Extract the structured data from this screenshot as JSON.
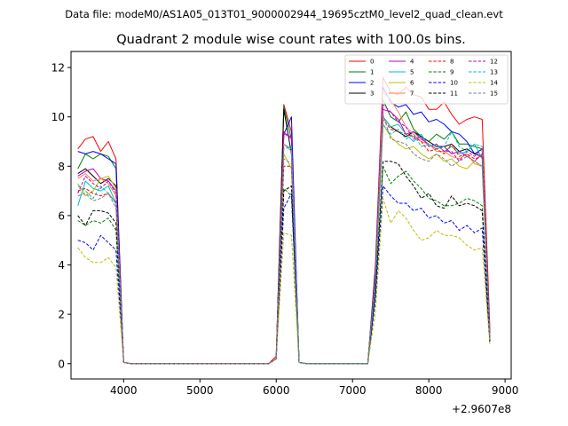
{
  "suptitle": "Data file: modeM0/AS1A05_013T01_9000002944_19695cztM0_level2_quad_clean.evt",
  "chart_data": {
    "type": "line",
    "title": "Quadrant 2 module wise count rates with 100.0s bins.",
    "xlabel": "",
    "ylabel": "",
    "x_offset_label": "+2.9607e8",
    "xlim": [
      3310,
      9080
    ],
    "ylim": [
      -0.62,
      12.65
    ],
    "xticks": [
      4000,
      5000,
      6000,
      7000,
      8000,
      9000
    ],
    "yticks": [
      0,
      2,
      4,
      6,
      8,
      10,
      12
    ],
    "grid": false,
    "legend_position": "upper right",
    "legend_columns": 4,
    "x": [
      3400,
      3500,
      3600,
      3700,
      3800,
      3900,
      4000,
      4100,
      4200,
      4300,
      4400,
      4500,
      4600,
      4700,
      4800,
      4900,
      5000,
      5100,
      5200,
      5300,
      5400,
      5500,
      5600,
      5700,
      5800,
      5900,
      6000,
      6100,
      6200,
      6300,
      6400,
      6500,
      6600,
      6700,
      6800,
      6900,
      7000,
      7100,
      7200,
      7300,
      7400,
      7500,
      7600,
      7700,
      7800,
      7900,
      8000,
      8100,
      8200,
      8300,
      8400,
      8500,
      8600,
      8700,
      8800
    ],
    "series": [
      {
        "name": "0",
        "color": "#ff0000",
        "dash": "solid",
        "values": [
          8.7,
          9.1,
          9.2,
          8.6,
          9.0,
          8.3,
          0.05,
          0,
          0,
          0,
          0,
          0,
          0,
          0,
          0,
          0,
          0,
          0,
          0,
          0,
          0,
          0,
          0,
          0,
          0,
          0,
          0.3,
          10.5,
          9.4,
          0.05,
          0,
          0,
          0,
          0,
          0,
          0,
          0,
          0,
          0,
          4.0,
          11.6,
          11.0,
          10.9,
          11.2,
          10.9,
          10.8,
          10.3,
          10.3,
          10.6,
          10.1,
          9.7,
          9.9,
          10.0,
          9.9,
          1.5
        ]
      },
      {
        "name": "1",
        "color": "#008000",
        "dash": "solid",
        "values": [
          7.9,
          8.5,
          8.3,
          8.5,
          8.4,
          7.9,
          0.05,
          0,
          0,
          0,
          0,
          0,
          0,
          0,
          0,
          0,
          0,
          0,
          0,
          0,
          0,
          0,
          0,
          0,
          0,
          0,
          0.2,
          10.4,
          9.1,
          0.05,
          0,
          0,
          0,
          0,
          0,
          0,
          0,
          0,
          0,
          3.7,
          10.7,
          10.0,
          9.8,
          10.2,
          9.5,
          9.2,
          9.0,
          9.3,
          9.1,
          9.4,
          8.9,
          8.9,
          8.8,
          8.7,
          1.2
        ]
      },
      {
        "name": "2",
        "color": "#0000ff",
        "dash": "solid",
        "values": [
          8.6,
          8.5,
          8.6,
          8.5,
          8.3,
          8.1,
          0.05,
          0,
          0,
          0,
          0,
          0,
          0,
          0,
          0,
          0,
          0,
          0,
          0,
          0,
          0,
          0,
          0,
          0,
          0,
          0,
          0.2,
          9.3,
          10.0,
          0.05,
          0,
          0,
          0,
          0,
          0,
          0,
          0,
          0,
          0,
          3.8,
          11.2,
          10.6,
          10.4,
          10.5,
          10.1,
          10.2,
          9.8,
          9.9,
          9.7,
          9.4,
          9.3,
          9.0,
          8.5,
          8.7,
          1.3
        ]
      },
      {
        "name": "3",
        "color": "#000000",
        "dash": "solid",
        "values": [
          7.7,
          7.9,
          7.6,
          7.3,
          7.5,
          7.2,
          0.05,
          0,
          0,
          0,
          0,
          0,
          0,
          0,
          0,
          0,
          0,
          0,
          0,
          0,
          0,
          0,
          0,
          0,
          0,
          0,
          0.2,
          10.3,
          8.5,
          0.05,
          0,
          0,
          0,
          0,
          0,
          0,
          0,
          0,
          0,
          3.6,
          10.0,
          9.6,
          9.4,
          9.2,
          9.4,
          9.2,
          9.0,
          8.8,
          8.8,
          8.9,
          8.6,
          8.7,
          8.5,
          8.4,
          1.1
        ]
      },
      {
        "name": "4",
        "color": "#bf00bf",
        "dash": "solid",
        "values": [
          7.6,
          7.8,
          7.9,
          7.5,
          7.4,
          7.0,
          0.05,
          0,
          0,
          0,
          0,
          0,
          0,
          0,
          0,
          0,
          0,
          0,
          0,
          0,
          0,
          0,
          0,
          0,
          0,
          0,
          0.2,
          9.3,
          9.2,
          0.05,
          0,
          0,
          0,
          0,
          0,
          0,
          0,
          0,
          0,
          3.5,
          10.3,
          10.2,
          9.9,
          9.3,
          9.4,
          9.1,
          8.9,
          8.7,
          8.8,
          8.5,
          8.6,
          8.4,
          8.2,
          8.5,
          1.1
        ]
      },
      {
        "name": "5",
        "color": "#00bfbf",
        "dash": "solid",
        "values": [
          6.4,
          7.4,
          7.1,
          7.0,
          7.2,
          6.5,
          0.05,
          0,
          0,
          0,
          0,
          0,
          0,
          0,
          0,
          0,
          0,
          0,
          0,
          0,
          0,
          0,
          0,
          0,
          0,
          0,
          0.2,
          8.9,
          8.7,
          0.05,
          0,
          0,
          0,
          0,
          0,
          0,
          0,
          0,
          0,
          3.4,
          10.0,
          9.6,
          9.7,
          9.3,
          9.0,
          9.3,
          8.8,
          8.9,
          8.6,
          8.8,
          8.5,
          8.6,
          8.9,
          8.3,
          1.1
        ]
      },
      {
        "name": "6",
        "color": "#bfbf00",
        "dash": "solid",
        "values": [
          7.3,
          6.8,
          7.0,
          7.5,
          7.6,
          7.1,
          0.05,
          0,
          0,
          0,
          0,
          0,
          0,
          0,
          0,
          0,
          0,
          0,
          0,
          0,
          0,
          0,
          0,
          0,
          0,
          0,
          0.2,
          8.5,
          7.9,
          0.05,
          0,
          0,
          0,
          0,
          0,
          0,
          0,
          0,
          0,
          3.3,
          9.7,
          9.2,
          8.9,
          8.7,
          8.8,
          8.5,
          8.3,
          8.5,
          8.2,
          8.3,
          8.0,
          7.9,
          8.2,
          8.0,
          1.0
        ]
      },
      {
        "name": "7",
        "color": "#ff7f50",
        "dash": "solid",
        "values": [
          7.5,
          7.7,
          7.4,
          7.5,
          7.3,
          6.8,
          0.05,
          0,
          0,
          0,
          0,
          0,
          0,
          0,
          0,
          0,
          0,
          0,
          0,
          0,
          0,
          0,
          0,
          0,
          0,
          0,
          0.2,
          8.9,
          8.6,
          0.05,
          0,
          0,
          0,
          0,
          0,
          0,
          0,
          0,
          0,
          3.5,
          11.0,
          10.7,
          10.2,
          9.6,
          9.3,
          9.0,
          8.9,
          8.6,
          8.6,
          8.4,
          8.3,
          8.5,
          8.1,
          8.0,
          1.1
        ]
      },
      {
        "name": "8",
        "color": "#ff0000",
        "dash": "dashed",
        "values": [
          7.0,
          7.1,
          6.9,
          6.8,
          6.9,
          6.5,
          0.05,
          0,
          0,
          0,
          0,
          0,
          0,
          0,
          0,
          0,
          0,
          0,
          0,
          0,
          0,
          0,
          0,
          0,
          0,
          0,
          0.2,
          8.0,
          8.0,
          0.05,
          0,
          0,
          0,
          0,
          0,
          0,
          0,
          0,
          0,
          3.3,
          9.9,
          9.5,
          9.4,
          9.3,
          9.2,
          9.0,
          8.6,
          8.7,
          8.5,
          8.9,
          8.4,
          8.5,
          8.3,
          8.4,
          1.0
        ]
      },
      {
        "name": "9",
        "color": "#008000",
        "dash": "dashed",
        "values": [
          5.8,
          5.6,
          5.8,
          5.7,
          5.9,
          5.4,
          0.05,
          0,
          0,
          0,
          0,
          0,
          0,
          0,
          0,
          0,
          0,
          0,
          0,
          0,
          0,
          0,
          0,
          0,
          0,
          0,
          0.2,
          7.1,
          6.8,
          0.05,
          0,
          0,
          0,
          0,
          0,
          0,
          0,
          0,
          0,
          2.8,
          8.0,
          7.3,
          7.6,
          7.8,
          7.4,
          7.1,
          6.7,
          6.6,
          6.4,
          6.4,
          6.5,
          6.7,
          6.6,
          6.4,
          0.9
        ]
      },
      {
        "name": "10",
        "color": "#0000ff",
        "dash": "dashed",
        "values": [
          5.0,
          4.9,
          4.6,
          5.2,
          4.9,
          4.6,
          0.05,
          0,
          0,
          0,
          0,
          0,
          0,
          0,
          0,
          0,
          0,
          0,
          0,
          0,
          0,
          0,
          0,
          0,
          0,
          0,
          0.2,
          6.3,
          6.9,
          0.05,
          0,
          0,
          0,
          0,
          0,
          0,
          0,
          0,
          0,
          2.6,
          7.2,
          6.8,
          6.5,
          6.5,
          6.2,
          6.3,
          5.9,
          6.0,
          5.7,
          5.8,
          5.4,
          5.6,
          5.3,
          5.5,
          0.9
        ]
      },
      {
        "name": "11",
        "color": "#000000",
        "dash": "dashed",
        "values": [
          6.0,
          5.6,
          6.2,
          6.2,
          6.1,
          5.7,
          0.05,
          0,
          0,
          0,
          0,
          0,
          0,
          0,
          0,
          0,
          0,
          0,
          0,
          0,
          0,
          0,
          0,
          0,
          0,
          0,
          0.2,
          7.0,
          7.2,
          0.05,
          0,
          0,
          0,
          0,
          0,
          0,
          0,
          0,
          0,
          2.9,
          8.2,
          8.2,
          8.1,
          7.6,
          7.2,
          6.7,
          6.9,
          6.4,
          6.3,
          6.8,
          6.4,
          6.5,
          6.4,
          6.2,
          0.9
        ]
      },
      {
        "name": "12",
        "color": "#bf00bf",
        "dash": "dashed",
        "values": [
          6.9,
          7.6,
          7.3,
          7.1,
          7.4,
          6.9,
          0.05,
          0,
          0,
          0,
          0,
          0,
          0,
          0,
          0,
          0,
          0,
          0,
          0,
          0,
          0,
          0,
          0,
          0,
          0,
          0,
          0.2,
          9.4,
          9.1,
          0.05,
          0,
          0,
          0,
          0,
          0,
          0,
          0,
          0,
          0,
          3.5,
          10.5,
          10.2,
          9.8,
          9.6,
          9.1,
          9.2,
          8.8,
          8.9,
          8.6,
          8.6,
          8.2,
          8.6,
          8.4,
          8.7,
          1.1
        ]
      },
      {
        "name": "13",
        "color": "#00bfbf",
        "dash": "dashed",
        "values": [
          7.2,
          7.0,
          6.7,
          7.2,
          6.9,
          6.5,
          0.05,
          0,
          0,
          0,
          0,
          0,
          0,
          0,
          0,
          0,
          0,
          0,
          0,
          0,
          0,
          0,
          0,
          0,
          0,
          0,
          0.2,
          8.7,
          8.8,
          0.05,
          0,
          0,
          0,
          0,
          0,
          0,
          0,
          0,
          0,
          3.4,
          9.7,
          9.3,
          9.5,
          9.1,
          9.3,
          8.8,
          8.9,
          8.7,
          8.8,
          9.4,
          8.8,
          8.6,
          8.9,
          8.8,
          1.1
        ]
      },
      {
        "name": "14",
        "color": "#bfbf00",
        "dash": "dashed",
        "values": [
          4.7,
          4.3,
          4.1,
          4.1,
          4.3,
          3.9,
          0.05,
          0,
          0,
          0,
          0,
          0,
          0,
          0,
          0,
          0,
          0,
          0,
          0,
          0,
          0,
          0,
          0,
          0,
          0,
          0,
          0.2,
          5.3,
          5.2,
          0.05,
          0,
          0,
          0,
          0,
          0,
          0,
          0,
          0,
          0,
          2.1,
          6.7,
          5.7,
          6.2,
          5.9,
          5.4,
          5.0,
          5.1,
          5.4,
          5.2,
          5.2,
          5.1,
          4.8,
          4.6,
          4.7,
          0.8
        ]
      },
      {
        "name": "15",
        "color": "#808080",
        "dash": "dashed",
        "values": [
          6.8,
          6.9,
          6.6,
          6.7,
          6.9,
          6.3,
          0.05,
          0,
          0,
          0,
          0,
          0,
          0,
          0,
          0,
          0,
          0,
          0,
          0,
          0,
          0,
          0,
          0,
          0,
          0,
          0,
          0.2,
          8.3,
          8.1,
          0.05,
          0,
          0,
          0,
          0,
          0,
          0,
          0,
          0,
          0,
          3.3,
          10.1,
          9.1,
          9.0,
          8.9,
          8.5,
          8.3,
          8.2,
          8.5,
          8.3,
          8.0,
          8.2,
          8.4,
          8.2,
          8.0,
          1.0
        ]
      }
    ]
  }
}
